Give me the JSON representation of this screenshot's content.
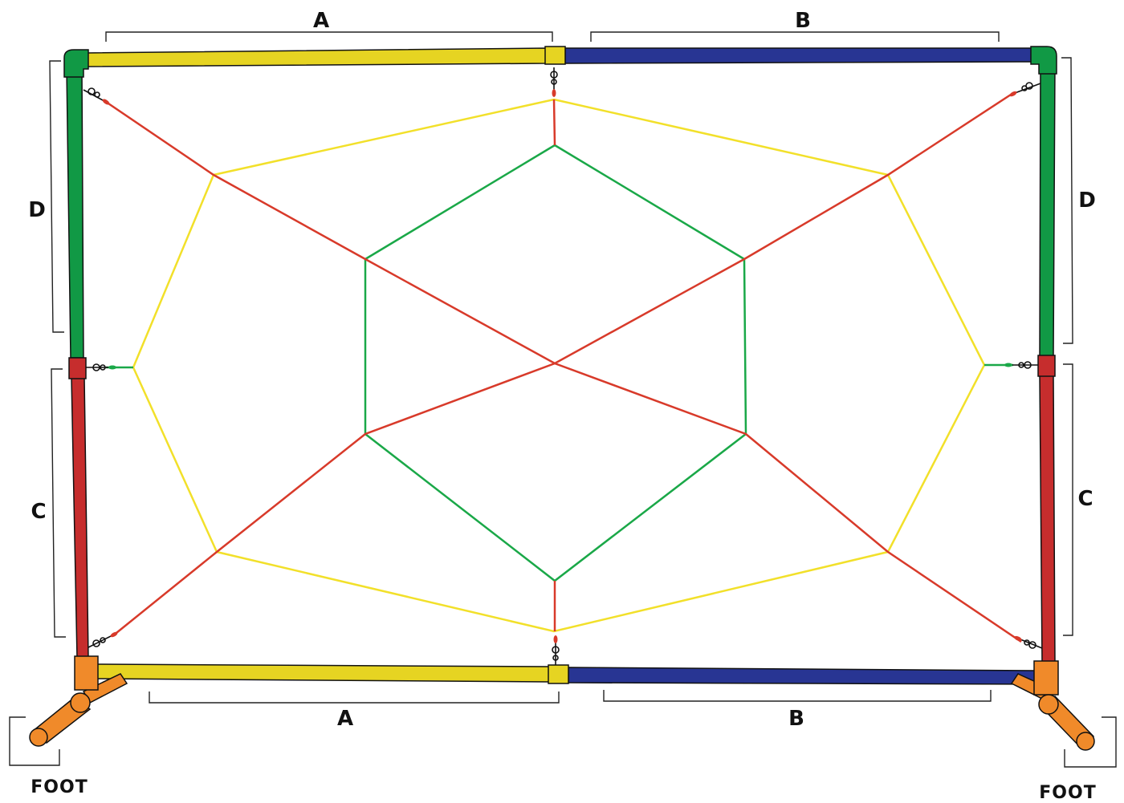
{
  "labels": {
    "top_left": "A",
    "top_right": "B",
    "bottom_left": "A",
    "bottom_right": "B",
    "left_upper": "D",
    "left_lower": "C",
    "right_upper": "D",
    "right_lower": "C",
    "foot_left": "FOOT",
    "foot_right": "FOOT"
  },
  "colors": {
    "pipe_A": "#e6d422",
    "pipe_B": "#283593",
    "pipe_D": "#119945",
    "pipe_C": "#c62d2d",
    "fitting_foot": "#f08a2a",
    "cord_red": "#d83a2a",
    "cord_yellow": "#f2e02a",
    "cord_green": "#1aa848",
    "hardware": "#111111",
    "bracket": "#222222"
  }
}
